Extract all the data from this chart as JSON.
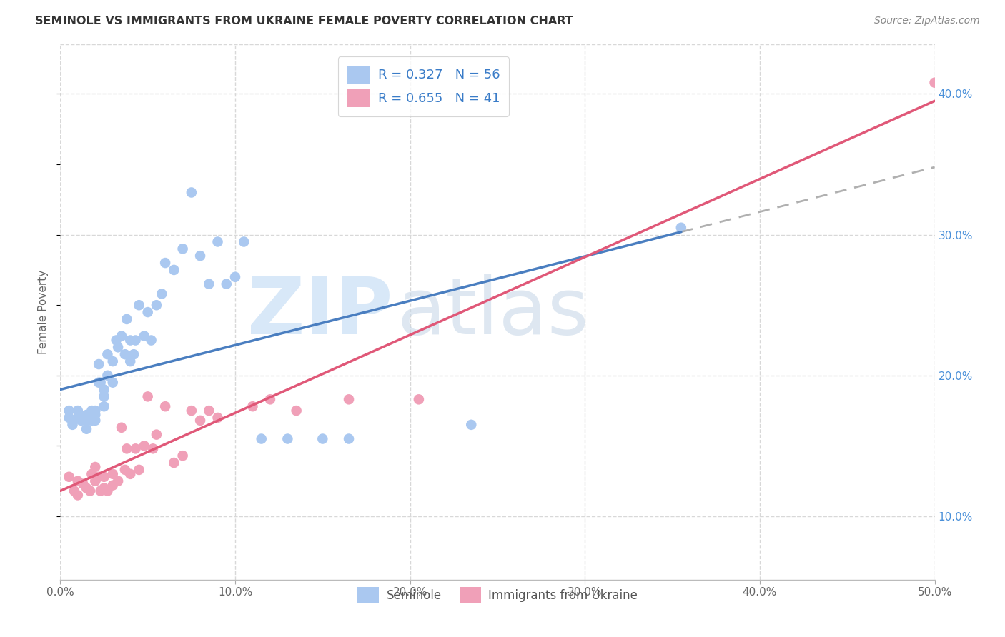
{
  "title": "SEMINOLE VS IMMIGRANTS FROM UKRAINE FEMALE POVERTY CORRELATION CHART",
  "source": "Source: ZipAtlas.com",
  "ylabel": "Female Poverty",
  "right_yticks": [
    "10.0%",
    "20.0%",
    "30.0%",
    "40.0%"
  ],
  "right_ytick_vals": [
    0.1,
    0.2,
    0.3,
    0.4
  ],
  "xlim": [
    0.0,
    0.5
  ],
  "ylim": [
    0.055,
    0.435
  ],
  "blue_color": "#aac8f0",
  "pink_color": "#f0a0b8",
  "line_blue": "#4a7ec0",
  "line_pink": "#e05878",
  "line_dash": "#b0b0b0",
  "grid_color": "#d8d8d8",
  "bg_color": "#ffffff",
  "seminole_x": [
    0.005,
    0.005,
    0.007,
    0.01,
    0.01,
    0.012,
    0.013,
    0.015,
    0.015,
    0.015,
    0.018,
    0.018,
    0.02,
    0.02,
    0.02,
    0.022,
    0.022,
    0.023,
    0.025,
    0.025,
    0.025,
    0.027,
    0.027,
    0.03,
    0.03,
    0.032,
    0.033,
    0.035,
    0.037,
    0.038,
    0.04,
    0.04,
    0.042,
    0.043,
    0.045,
    0.048,
    0.05,
    0.052,
    0.055,
    0.058,
    0.06,
    0.065,
    0.07,
    0.075,
    0.08,
    0.085,
    0.09,
    0.095,
    0.1,
    0.105,
    0.115,
    0.13,
    0.15,
    0.165,
    0.235,
    0.355
  ],
  "seminole_y": [
    0.175,
    0.17,
    0.165,
    0.175,
    0.17,
    0.168,
    0.17,
    0.172,
    0.168,
    0.162,
    0.175,
    0.168,
    0.172,
    0.168,
    0.175,
    0.208,
    0.195,
    0.195,
    0.19,
    0.185,
    0.178,
    0.215,
    0.2,
    0.21,
    0.195,
    0.225,
    0.22,
    0.228,
    0.215,
    0.24,
    0.225,
    0.21,
    0.215,
    0.225,
    0.25,
    0.228,
    0.245,
    0.225,
    0.25,
    0.258,
    0.28,
    0.275,
    0.29,
    0.33,
    0.285,
    0.265,
    0.295,
    0.265,
    0.27,
    0.295,
    0.155,
    0.155,
    0.155,
    0.155,
    0.165,
    0.305
  ],
  "ukraine_x": [
    0.005,
    0.008,
    0.01,
    0.01,
    0.013,
    0.015,
    0.017,
    0.018,
    0.02,
    0.02,
    0.022,
    0.023,
    0.025,
    0.025,
    0.027,
    0.03,
    0.03,
    0.033,
    0.035,
    0.037,
    0.038,
    0.04,
    0.043,
    0.045,
    0.048,
    0.05,
    0.053,
    0.055,
    0.06,
    0.065,
    0.07,
    0.075,
    0.08,
    0.085,
    0.09,
    0.11,
    0.12,
    0.135,
    0.165,
    0.205,
    0.5
  ],
  "ukraine_y": [
    0.128,
    0.118,
    0.125,
    0.115,
    0.123,
    0.12,
    0.118,
    0.13,
    0.125,
    0.135,
    0.128,
    0.118,
    0.128,
    0.12,
    0.118,
    0.13,
    0.122,
    0.125,
    0.163,
    0.133,
    0.148,
    0.13,
    0.148,
    0.133,
    0.15,
    0.185,
    0.148,
    0.158,
    0.178,
    0.138,
    0.143,
    0.175,
    0.168,
    0.175,
    0.17,
    0.178,
    0.183,
    0.175,
    0.183,
    0.183,
    0.408
  ],
  "blue_line_x0": 0.0,
  "blue_line_y0": 0.19,
  "blue_line_x1": 0.355,
  "blue_line_y1": 0.302,
  "dash_line_x0": 0.355,
  "dash_line_y0": 0.302,
  "dash_line_x1": 0.5,
  "dash_line_y1": 0.348,
  "pink_line_x0": 0.0,
  "pink_line_y0": 0.118,
  "pink_line_x1": 0.5,
  "pink_line_y1": 0.395
}
